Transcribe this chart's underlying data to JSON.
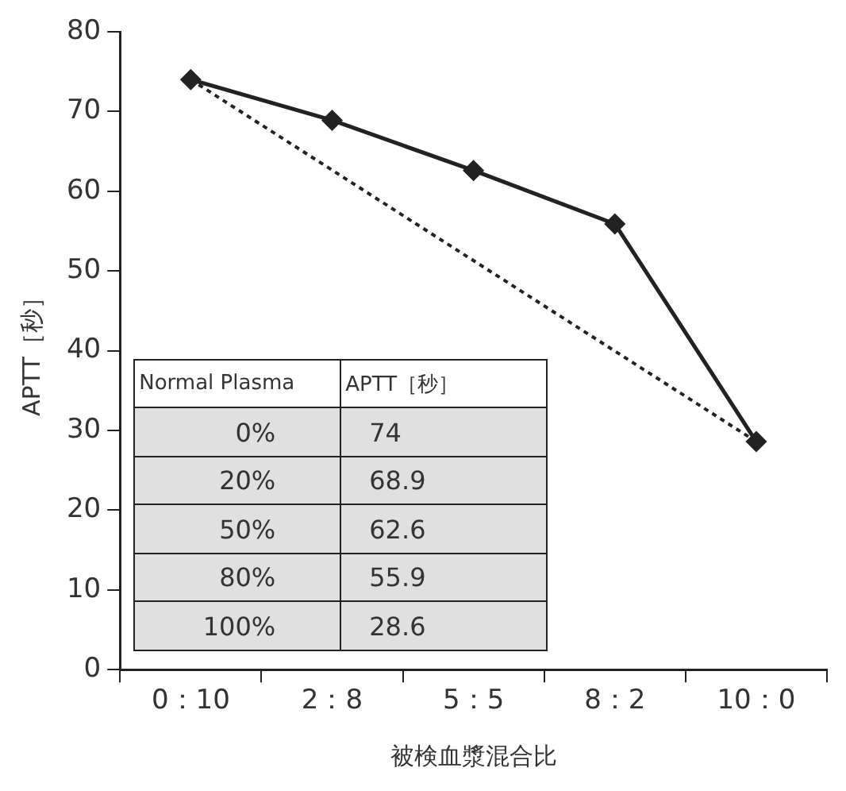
{
  "chart_data": {
    "type": "line",
    "xlabel": "被検血漿混合比",
    "ylabel": "APTT［秒］",
    "categories": [
      "0：10",
      "2：8",
      "5：5",
      "8：2",
      "10：0"
    ],
    "series": [
      {
        "color": "#222222",
        "values": [
          74,
          68.9,
          62.6,
          55.9,
          28.6
        ],
        "marker": "diamond",
        "line_style": "solid"
      },
      {
        "color": "#222222",
        "values": [
          74,
          null,
          null,
          null,
          28.6
        ],
        "marker": "none",
        "line_style": "dotted"
      }
    ],
    "ylim": [
      0,
      80
    ],
    "yticks": [
      0,
      10,
      20,
      30,
      40,
      50,
      60,
      70,
      80
    ],
    "grid": false,
    "legend": false,
    "annotations": [
      "Normal Plasma",
      "APTT［秒］",
      "0%",
      "74",
      "20%",
      "68.9",
      "50%",
      "62.6",
      "80%",
      "55.9",
      "100%",
      "28.6"
    ]
  }
}
